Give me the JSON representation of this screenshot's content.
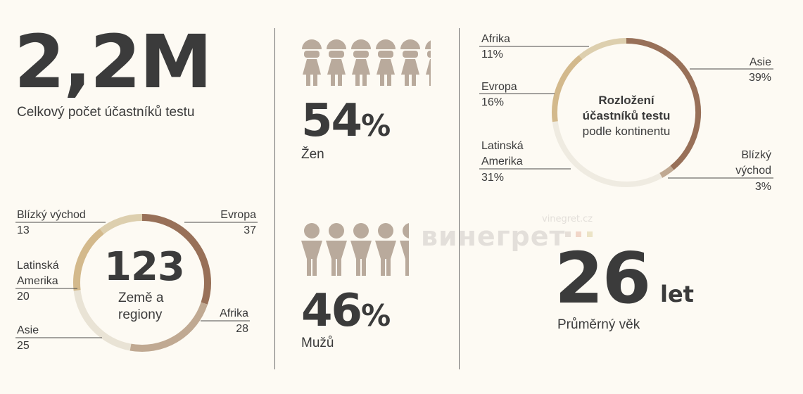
{
  "total": {
    "value": "2,2M",
    "label": "Celkový počet účastníků testu"
  },
  "women": {
    "value": "54",
    "percent_sign": "%",
    "label": "Žen",
    "share": 0.54
  },
  "men": {
    "value": "46",
    "percent_sign": "%",
    "label": "Mužů",
    "share": 0.46
  },
  "countries": {
    "value": "123",
    "label_line1": "Země a",
    "label_line2": "regiony"
  },
  "age": {
    "value": "26",
    "unit": "let",
    "label": "Průměrný věk"
  },
  "continents_title": {
    "line1": "Rozložení",
    "line2": "účastníků testu",
    "line3": "podle kontinentu"
  },
  "watermark": {
    "brand": "винегрет",
    "domain": "vinegret.cz"
  },
  "colors": {
    "dark_brown": "#987058",
    "mid_brown": "#c0a992",
    "sand": "#ddcfae",
    "light": "#e9e3d5",
    "lightest": "#efebe1",
    "icon": "#b9aa9c",
    "gold": "#d3b98c"
  },
  "chart_data": [
    {
      "type": "pie",
      "title": "",
      "series": [
        {
          "values": [
            {
              "name": "Evropa",
              "value": 37
            },
            {
              "name": "Afrika",
              "value": 28
            },
            {
              "name": "Asie",
              "value": 25
            },
            {
              "name": "Latinská Amerika",
              "value": 20
            },
            {
              "name": "Blízký východ",
              "value": 13
            }
          ]
        }
      ],
      "labels": {
        "evropa": {
          "line1": "Evropa",
          "value": "37"
        },
        "afrika": {
          "line1": "Afrika",
          "value": "28"
        },
        "asie": {
          "line1": "Asie",
          "value": "25"
        },
        "latam": {
          "line1": "Latinská",
          "line2": "Amerika",
          "value": "20"
        },
        "blizky": {
          "line1": "Blízký východ",
          "value": "13"
        }
      }
    },
    {
      "type": "pie",
      "title": "Rozložení účastníků testu podle kontinentu",
      "series": [
        {
          "values": [
            {
              "name": "Asie",
              "value": 39
            },
            {
              "name": "Blízký východ",
              "value": 3
            },
            {
              "name": "Latinská Amerika",
              "value": 31
            },
            {
              "name": "Evropa",
              "value": 16
            },
            {
              "name": "Afrika",
              "value": 11
            }
          ]
        }
      ],
      "labels": {
        "asie": {
          "line1": "Asie",
          "value": "39%"
        },
        "blizky": {
          "line1": "Blízký",
          "line2": "východ",
          "value": "3%"
        },
        "latam": {
          "line1": "Latinská",
          "line2": "Amerika",
          "value": "31%"
        },
        "evropa": {
          "line1": "Evropa",
          "value": "16%"
        },
        "afrika": {
          "line1": "Afrika",
          "value": "11%"
        }
      }
    }
  ]
}
